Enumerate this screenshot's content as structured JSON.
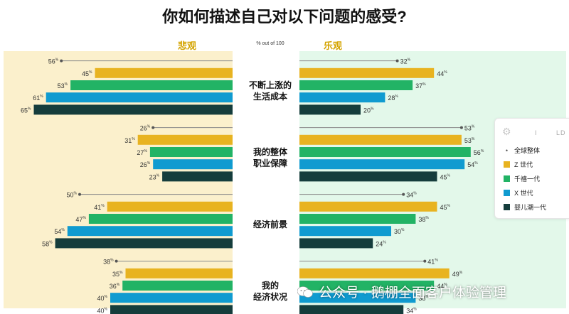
{
  "chart_data": {
    "type": "bar",
    "title": "你如何描述自己对以下问题的感受?",
    "left_header": "悲观",
    "right_header": "乐观",
    "center_note": "% out of 100",
    "unit_suffix": "%",
    "legend": [
      {
        "name": "全球整体",
        "kind": "marker",
        "color": "#7a7a7a"
      },
      {
        "name": "Z 世代",
        "kind": "bar",
        "color": "#e8b320"
      },
      {
        "name": "千禧一代",
        "kind": "bar",
        "color": "#22b365"
      },
      {
        "name": "X 世代",
        "kind": "bar",
        "color": "#109bd0"
      },
      {
        "name": "婴儿潮一代",
        "kind": "bar",
        "color": "#153d3c"
      }
    ],
    "categories": [
      {
        "label": [
          "不断上涨的",
          "生活成本"
        ],
        "pessimistic": {
          "global": 56,
          "gen": [
            45,
            53,
            61,
            65
          ]
        },
        "optimistic": {
          "global": 32,
          "gen": [
            44,
            37,
            28,
            20
          ]
        }
      },
      {
        "label": [
          "我的整体",
          "职业保障"
        ],
        "pessimistic": {
          "global": 26,
          "gen": [
            31,
            27,
            26,
            23
          ]
        },
        "optimistic": {
          "global": 53,
          "gen": [
            53,
            56,
            54,
            45
          ]
        }
      },
      {
        "label": [
          "经济前景"
        ],
        "pessimistic": {
          "global": 50,
          "gen": [
            41,
            47,
            54,
            58
          ]
        },
        "optimistic": {
          "global": 34,
          "gen": [
            45,
            38,
            30,
            24
          ]
        }
      },
      {
        "label": [
          "我的",
          "经济状况"
        ],
        "pessimistic": {
          "global": 38,
          "gen": [
            35,
            36,
            40,
            40
          ]
        },
        "optimistic": {
          "global": 41,
          "gen": [
            49,
            44,
            38,
            34
          ]
        }
      }
    ],
    "bg_left": "#fbf0cc",
    "bg_right": "#e3f8ea"
  },
  "legend_ui": {
    "gear": "⚙",
    "mid": "I",
    "right": "LD"
  },
  "watermark": "公众号 · 鹅棚全面客户体验管理"
}
